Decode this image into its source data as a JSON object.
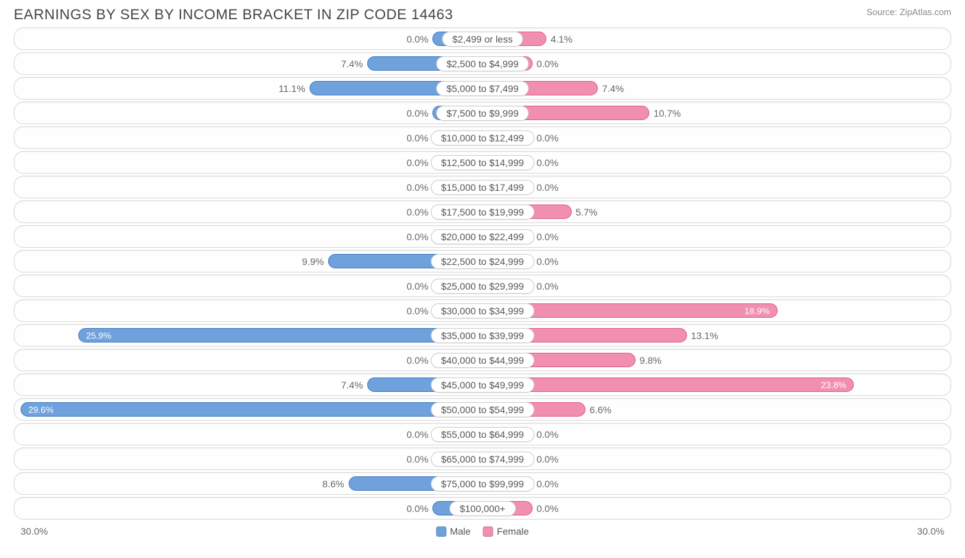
{
  "title": "EARNINGS BY SEX BY INCOME BRACKET IN ZIP CODE 14463",
  "source": "Source: ZipAtlas.com",
  "axis_max_pct": 30.0,
  "axis_left_label": "30.0%",
  "axis_right_label": "30.0%",
  "min_bar_pct": 3.2,
  "colors": {
    "male_fill": "#6fa1dd",
    "male_border": "#3f78c0",
    "female_fill": "#f08fb0",
    "female_border": "#e05a8a",
    "row_border": "#d8d8d8",
    "background": "#ffffff",
    "text": "#555555"
  },
  "legend": {
    "male": "Male",
    "female": "Female"
  },
  "rows": [
    {
      "label": "$2,499 or less",
      "male": 0.0,
      "female": 4.1
    },
    {
      "label": "$2,500 to $4,999",
      "male": 7.4,
      "female": 0.0
    },
    {
      "label": "$5,000 to $7,499",
      "male": 11.1,
      "female": 7.4
    },
    {
      "label": "$7,500 to $9,999",
      "male": 0.0,
      "female": 10.7
    },
    {
      "label": "$10,000 to $12,499",
      "male": 0.0,
      "female": 0.0
    },
    {
      "label": "$12,500 to $14,999",
      "male": 0.0,
      "female": 0.0
    },
    {
      "label": "$15,000 to $17,499",
      "male": 0.0,
      "female": 0.0
    },
    {
      "label": "$17,500 to $19,999",
      "male": 0.0,
      "female": 5.7
    },
    {
      "label": "$20,000 to $22,499",
      "male": 0.0,
      "female": 0.0
    },
    {
      "label": "$22,500 to $24,999",
      "male": 9.9,
      "female": 0.0
    },
    {
      "label": "$25,000 to $29,999",
      "male": 0.0,
      "female": 0.0
    },
    {
      "label": "$30,000 to $34,999",
      "male": 0.0,
      "female": 18.9
    },
    {
      "label": "$35,000 to $39,999",
      "male": 25.9,
      "female": 13.1
    },
    {
      "label": "$40,000 to $44,999",
      "male": 0.0,
      "female": 9.8
    },
    {
      "label": "$45,000 to $49,999",
      "male": 7.4,
      "female": 23.8
    },
    {
      "label": "$50,000 to $54,999",
      "male": 29.6,
      "female": 6.6
    },
    {
      "label": "$55,000 to $64,999",
      "male": 0.0,
      "female": 0.0
    },
    {
      "label": "$65,000 to $74,999",
      "male": 0.0,
      "female": 0.0
    },
    {
      "label": "$75,000 to $99,999",
      "male": 8.6,
      "female": 0.0
    },
    {
      "label": "$100,000+",
      "male": 0.0,
      "female": 0.0
    }
  ]
}
